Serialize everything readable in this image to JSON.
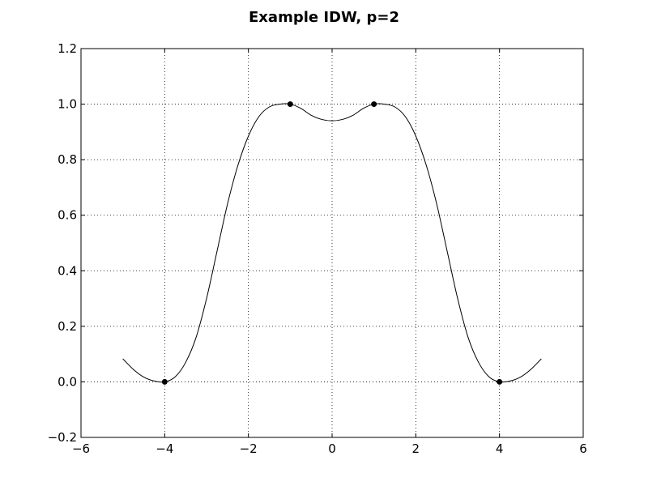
{
  "chart_data": {
    "type": "line",
    "title": "Example IDW, p=2",
    "xlabel": "",
    "ylabel": "",
    "xlim": [
      -6,
      6
    ],
    "ylim": [
      -0.2,
      1.2
    ],
    "x_ticks": [
      -6,
      -4,
      -2,
      0,
      2,
      4,
      6
    ],
    "x_tick_labels": [
      "−6",
      "−4",
      "−2",
      "0",
      "2",
      "4",
      "6"
    ],
    "y_ticks": [
      -0.2,
      0.0,
      0.2,
      0.4,
      0.6,
      0.8,
      1.0,
      1.2
    ],
    "y_tick_labels": [
      "−0.2",
      "0.0",
      "0.2",
      "0.4",
      "0.6",
      "0.8",
      "1.0",
      "1.2"
    ],
    "grid": true,
    "legend": "none",
    "series": [
      {
        "kind": "line",
        "color": "#000000",
        "x": [
          -5.0,
          -4.75,
          -4.5,
          -4.25,
          -4.0,
          -3.75,
          -3.5,
          -3.25,
          -3.0,
          -2.75,
          -2.5,
          -2.25,
          -2.0,
          -1.75,
          -1.5,
          -1.25,
          -1.0,
          -0.75,
          -0.5,
          -0.25,
          0.0,
          0.25,
          0.5,
          0.75,
          1.0,
          1.25,
          1.5,
          1.75,
          2.0,
          2.25,
          2.5,
          2.75,
          3.0,
          3.25,
          3.5,
          3.75,
          4.0,
          4.25,
          4.5,
          4.75,
          5.0
        ],
        "y": [
          0.083,
          0.045,
          0.017,
          0.003,
          0.0,
          0.018,
          0.07,
          0.16,
          0.3,
          0.47,
          0.64,
          0.78,
          0.885,
          0.955,
          0.99,
          1.0,
          1.0,
          0.985,
          0.96,
          0.945,
          0.94,
          0.945,
          0.96,
          0.985,
          1.0,
          1.0,
          0.99,
          0.955,
          0.885,
          0.78,
          0.64,
          0.47,
          0.3,
          0.16,
          0.07,
          0.018,
          0.0,
          0.003,
          0.017,
          0.045,
          0.083
        ]
      },
      {
        "kind": "scatter",
        "color": "#000000",
        "x": [
          -4,
          -1,
          1,
          4
        ],
        "y": [
          0.0,
          1.0,
          1.0,
          0.0
        ]
      }
    ]
  }
}
